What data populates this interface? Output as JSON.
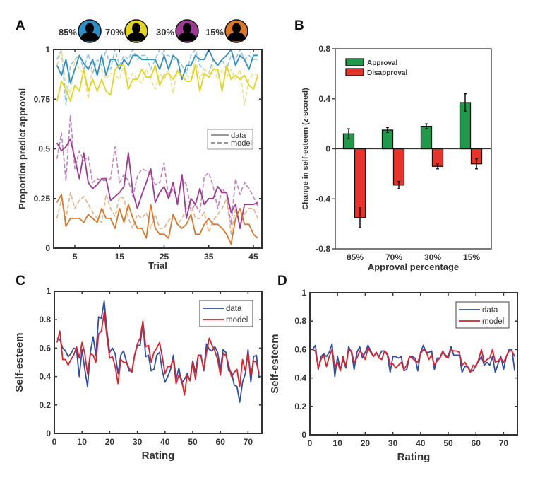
{
  "chart_data": [
    {
      "panel": "A",
      "type": "line",
      "xlabel": "Trial",
      "ylabel": "Proportion predict approval",
      "xlim": [
        0.25,
        46.9
      ],
      "ylim": [
        0,
        1
      ],
      "xticks": [
        5,
        15,
        25,
        35,
        45
      ],
      "yticks": [
        0,
        0.25,
        0.5,
        0.75,
        1
      ],
      "ytick_labels": [
        "0",
        "0.25",
        "0.5",
        "0.75",
        "1"
      ],
      "legend": {
        "entries": [
          "data",
          "model"
        ],
        "placement": "center-right",
        "color": "#8a8a8a"
      },
      "groups": [
        {
          "label": "85%",
          "color": "#2e8ec8",
          "model_color": "#8ec6e6",
          "data": [
            0.92,
            0.87,
            0.95,
            0.83,
            0.9,
            0.97,
            0.93,
            0.9,
            0.95,
            0.87,
            0.97,
            0.87,
            0.95,
            0.95,
            0.9,
            0.95,
            0.92,
            0.97,
            0.97,
            0.95,
            0.95,
            0.95,
            0.95,
            0.9,
            0.97,
            0.9,
            0.97,
            0.95,
            0.85,
            0.92,
            0.92,
            0.97,
            0.95,
            0.95,
            1.0,
            0.95,
            0.92,
            0.95,
            0.97,
            1.0,
            0.92,
            0.97,
            0.95,
            0.9,
            0.97,
            0.97
          ],
          "model": [
            0.95,
            1.0,
            0.72,
            0.92,
            0.95,
            0.97,
            0.9,
            0.98,
            0.88,
            0.95,
            0.92,
            1.0,
            0.9,
            1.0,
            0.92,
            0.97,
            0.95,
            1.0,
            0.95,
            0.97,
            0.97,
            0.9,
            0.95,
            1.0,
            0.97,
            0.97,
            0.95,
            0.95,
            0.92,
            0.88,
            0.97,
            1.0,
            0.92,
            0.9,
            0.88,
            0.95,
            0.92,
            0.95,
            0.9,
            0.97,
            0.95,
            1.0,
            0.95,
            0.97,
            0.95,
            0.95
          ]
        },
        {
          "label": "70%",
          "color": "#e3d51e",
          "model_color": "#ede08a",
          "data": [
            0.74,
            0.84,
            0.8,
            0.74,
            0.82,
            0.79,
            0.9,
            0.79,
            0.85,
            0.79,
            0.85,
            0.79,
            0.77,
            0.9,
            0.92,
            0.92,
            0.8,
            0.85,
            0.85,
            0.9,
            0.86,
            0.86,
            0.92,
            0.82,
            0.87,
            0.88,
            0.85,
            0.89,
            0.87,
            0.84,
            0.84,
            0.92,
            0.79,
            0.88,
            0.86,
            0.9,
            0.9,
            0.79,
            0.92,
            0.85,
            0.87,
            0.85,
            0.87,
            0.82,
            0.8,
            0.87
          ],
          "model": [
            0.92,
            1.0,
            0.82,
            0.78,
            0.95,
            0.9,
            0.88,
            0.75,
            0.93,
            0.88,
            0.9,
            0.85,
            0.88,
            0.87,
            0.85,
            0.92,
            0.85,
            0.88,
            0.85,
            0.83,
            0.9,
            0.85,
            0.8,
            0.88,
            0.85,
            0.9,
            0.78,
            0.9,
            0.85,
            0.87,
            0.85,
            0.95,
            0.85,
            0.9,
            0.88,
            0.92,
            0.85,
            0.9,
            0.86,
            0.9,
            0.85,
            0.9,
            0.72,
            0.85,
            0.88,
            0.87
          ]
        },
        {
          "label": "30%",
          "color": "#9e3a95",
          "model_color": "#c080ba",
          "data": [
            0.53,
            0.49,
            0.51,
            0.55,
            0.45,
            0.35,
            0.48,
            0.33,
            0.3,
            0.32,
            0.35,
            0.35,
            0.24,
            0.26,
            0.28,
            0.31,
            0.48,
            0.28,
            0.2,
            0.27,
            0.33,
            0.4,
            0.23,
            0.28,
            0.31,
            0.25,
            0.33,
            0.22,
            0.37,
            0.15,
            0.25,
            0.22,
            0.3,
            0.22,
            0.25,
            0.25,
            0.31,
            0.28,
            0.28,
            0.18,
            0.22,
            0.1,
            0.22,
            0.22,
            0.22,
            0.23
          ],
          "model": [
            0.45,
            0.58,
            0.34,
            0.67,
            0.4,
            0.49,
            0.44,
            0.46,
            0.33,
            0.35,
            0.34,
            0.34,
            0.35,
            0.51,
            0.33,
            0.37,
            0.34,
            0.26,
            0.36,
            0.4,
            0.39,
            0.38,
            0.32,
            0.33,
            0.43,
            0.25,
            0.3,
            0.24,
            0.35,
            0.32,
            0.19,
            0.22,
            0.18,
            0.36,
            0.38,
            0.31,
            0.2,
            0.3,
            0.27,
            0.12,
            0.35,
            0.27,
            0.33,
            0.3,
            0.26,
            0.21
          ]
        },
        {
          "label": "15%",
          "color": "#d9782a",
          "model_color": "#e8b184",
          "data": [
            0.23,
            0.27,
            0.11,
            0.15,
            0.15,
            0.15,
            0.13,
            0.17,
            0.15,
            0.13,
            0.2,
            0.15,
            0.15,
            0.1,
            0.2,
            0.13,
            0.22,
            0.15,
            0.1,
            0.1,
            0.05,
            0.22,
            0.1,
            0.07,
            0.07,
            0.05,
            0.17,
            0.12,
            0.1,
            0.12,
            0.17,
            0.07,
            0.07,
            0.12,
            0.15,
            0.12,
            0.12,
            0.1,
            0.07,
            0.02,
            0.15,
            0.2,
            0.12,
            0.12,
            0.07,
            0.05
          ],
          "model": [
            0.15,
            0.25,
            0.15,
            0.28,
            0.2,
            0.24,
            0.26,
            0.22,
            0.18,
            0.15,
            0.13,
            0.27,
            0.2,
            0.16,
            0.26,
            0.25,
            0.15,
            0.1,
            0.17,
            0.15,
            0.18,
            0.1,
            0.17,
            0.1,
            0.1,
            0.14,
            0.16,
            0.12,
            0.15,
            0.2,
            0.22,
            0.15,
            0.15,
            0.18,
            0.08,
            0.14,
            0.17,
            0.2,
            0.25,
            0.07,
            0.2,
            0.12,
            0.17,
            0.2,
            0.2,
            0.15
          ]
        }
      ]
    },
    {
      "panel": "B",
      "type": "bar",
      "xlabel": "Approval percentage",
      "ylabel": "Change in self-esteem (z-scored)",
      "categories": [
        "85%",
        "70%",
        "30%",
        "15%"
      ],
      "ylim": [
        -0.8,
        0.8
      ],
      "yticks": [
        -0.8,
        -0.4,
        0,
        0.4,
        0.8
      ],
      "ytick_labels": [
        "-0.8",
        "-0.4",
        "0",
        "0.4",
        "0.8"
      ],
      "legend": {
        "placement": "top-left"
      },
      "series": [
        {
          "name": "Approval",
          "color": "#1f9a4b",
          "values": [
            0.12,
            0.15,
            0.18,
            0.37
          ],
          "errors": [
            0.04,
            0.02,
            0.02,
            0.07
          ]
        },
        {
          "name": "Disapproval",
          "color": "#e8332a",
          "values": [
            -0.55,
            -0.29,
            -0.14,
            -0.12
          ],
          "errors": [
            0.08,
            0.03,
            0.02,
            0.04
          ]
        }
      ]
    },
    {
      "panel": "C",
      "type": "line",
      "xlabel": "Rating",
      "ylabel": "Self-esteem",
      "xlim": [
        0,
        75
      ],
      "ylim": [
        0,
        1
      ],
      "xticks": [
        0,
        10,
        20,
        30,
        40,
        50,
        60,
        70
      ],
      "yticks": [
        0,
        0.2,
        0.4,
        0.6,
        0.8,
        1
      ],
      "ytick_labels": [
        "0",
        "0.2",
        "0.4",
        "0.6",
        "0.8",
        "1"
      ],
      "legend": {
        "placement": "top-right"
      },
      "series": [
        {
          "name": "data",
          "color": "#2f4fa6",
          "values": [
            0.67,
            0.66,
            0.6,
            0.58,
            0.54,
            0.56,
            0.6,
            0.59,
            0.4,
            0.59,
            0.45,
            0.33,
            0.57,
            0.68,
            0.55,
            0.82,
            0.81,
            0.93,
            0.72,
            0.57,
            0.6,
            0.56,
            0.42,
            0.55,
            0.58,
            0.51,
            0.44,
            0.44,
            0.55,
            0.62,
            0.62,
            0.78,
            0.54,
            0.55,
            0.44,
            0.45,
            0.55,
            0.57,
            0.44,
            0.36,
            0.4,
            0.45,
            0.55,
            0.38,
            0.46,
            0.35,
            0.38,
            0.42,
            0.37,
            0.51,
            0.43,
            0.55,
            0.55,
            0.44,
            0.63,
            0.59,
            0.58,
            0.61,
            0.57,
            0.45,
            0.59,
            0.57,
            0.44,
            0.43,
            0.34,
            0.33,
            0.22,
            0.36,
            0.42,
            0.59,
            0.36,
            0.54,
            0.55,
            0.39
          ]
        },
        {
          "name": "model",
          "color": "#e0202a",
          "values": [
            0.64,
            0.72,
            0.52,
            0.52,
            0.48,
            0.52,
            0.55,
            0.61,
            0.53,
            0.64,
            0.56,
            0.42,
            0.56,
            0.55,
            0.5,
            0.7,
            0.72,
            0.85,
            0.68,
            0.53,
            0.54,
            0.47,
            0.35,
            0.52,
            0.5,
            0.5,
            0.46,
            0.43,
            0.55,
            0.63,
            0.67,
            0.79,
            0.61,
            0.62,
            0.5,
            0.57,
            0.6,
            0.64,
            0.54,
            0.42,
            0.47,
            0.47,
            0.52,
            0.35,
            0.41,
            0.38,
            0.27,
            0.41,
            0.37,
            0.5,
            0.38,
            0.55,
            0.54,
            0.45,
            0.57,
            0.67,
            0.62,
            0.58,
            0.52,
            0.41,
            0.56,
            0.55,
            0.48,
            0.4,
            0.43,
            0.45,
            0.33,
            0.52,
            0.44,
            0.56,
            0.41,
            0.51,
            0.5,
            0.42
          ]
        }
      ]
    },
    {
      "panel": "D",
      "type": "line",
      "xlabel": "Rating",
      "ylabel": "Self-esteem",
      "xlim": [
        0,
        75
      ],
      "ylim": [
        0,
        1
      ],
      "xticks": [
        0,
        10,
        20,
        30,
        40,
        50,
        60,
        70
      ],
      "yticks": [
        0,
        0.2,
        0.4,
        0.6,
        0.8,
        1
      ],
      "ytick_labels": [
        "0",
        "0.2",
        "0.4",
        "0.6",
        "0.8",
        "1"
      ],
      "legend": {
        "placement": "top-right"
      },
      "series": [
        {
          "name": "data",
          "color": "#2f4fa6",
          "values": [
            0.6,
            0.63,
            0.46,
            0.55,
            0.57,
            0.55,
            0.58,
            0.64,
            0.41,
            0.55,
            0.46,
            0.53,
            0.47,
            0.62,
            0.58,
            0.46,
            0.58,
            0.62,
            0.54,
            0.58,
            0.63,
            0.59,
            0.55,
            0.58,
            0.55,
            0.59,
            0.59,
            0.56,
            0.44,
            0.55,
            0.55,
            0.54,
            0.55,
            0.45,
            0.46,
            0.55,
            0.55,
            0.54,
            0.45,
            0.58,
            0.63,
            0.58,
            0.58,
            0.59,
            0.46,
            0.54,
            0.54,
            0.58,
            0.56,
            0.55,
            0.62,
            0.56,
            0.56,
            0.56,
            0.44,
            0.48,
            0.48,
            0.45,
            0.45,
            0.49,
            0.52,
            0.55,
            0.49,
            0.51,
            0.49,
            0.55,
            0.44,
            0.5,
            0.55,
            0.46,
            0.55,
            0.6,
            0.6,
            0.45
          ]
        },
        {
          "name": "model",
          "color": "#e0202a",
          "values": [
            0.6,
            0.59,
            0.47,
            0.53,
            0.56,
            0.48,
            0.55,
            0.6,
            0.48,
            0.51,
            0.45,
            0.55,
            0.48,
            0.6,
            0.59,
            0.51,
            0.54,
            0.59,
            0.57,
            0.53,
            0.61,
            0.58,
            0.55,
            0.58,
            0.54,
            0.53,
            0.59,
            0.57,
            0.5,
            0.5,
            0.47,
            0.49,
            0.51,
            0.46,
            0.49,
            0.55,
            0.54,
            0.52,
            0.51,
            0.57,
            0.6,
            0.59,
            0.53,
            0.56,
            0.49,
            0.52,
            0.54,
            0.59,
            0.55,
            0.54,
            0.6,
            0.59,
            0.59,
            0.58,
            0.49,
            0.51,
            0.48,
            0.44,
            0.49,
            0.48,
            0.53,
            0.6,
            0.51,
            0.53,
            0.54,
            0.6,
            0.51,
            0.52,
            0.54,
            0.51,
            0.55,
            0.59,
            0.59,
            0.55
          ]
        }
      ]
    }
  ],
  "panel_labels": [
    "A",
    "B",
    "C",
    "D"
  ]
}
